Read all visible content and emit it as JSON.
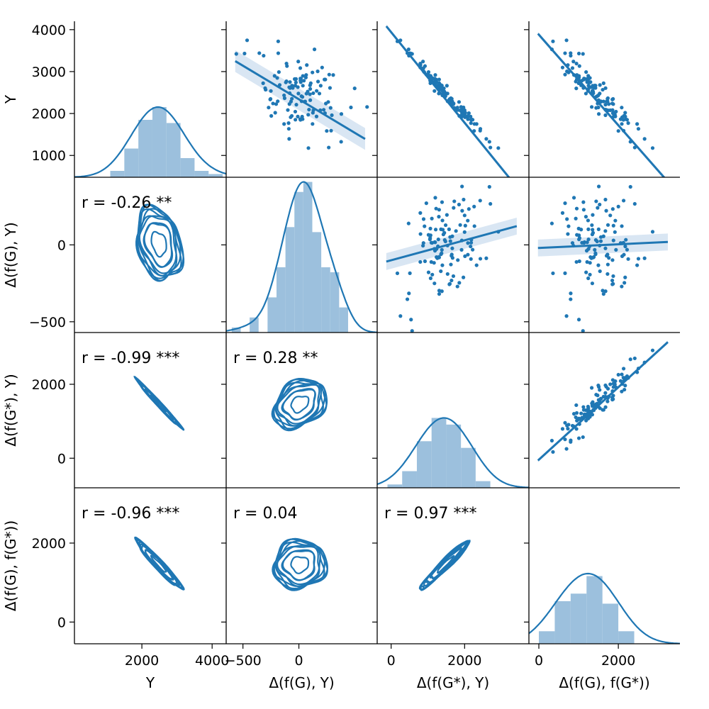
{
  "chart_data": {
    "type": "pairplot",
    "variables": [
      {
        "key": "Y",
        "label": "Y",
        "range": [
          80,
          4400
        ],
        "ticks": [
          2000,
          4000
        ]
      },
      {
        "key": "d_fG_Y",
        "label": "Δ(f(G), Y)",
        "range": [
          -650,
          700
        ],
        "ticks": [
          -500,
          0
        ]
      },
      {
        "key": "d_fGs_Y",
        "label": "Δ(f(G*), Y)",
        "range": [
          -380,
          3750
        ],
        "ticks": [
          0,
          2000
        ]
      },
      {
        "key": "d_fG_fGs",
        "label": "Δ(f(G), f(G*))",
        "range": [
          -250,
          3550
        ],
        "ticks": [
          0,
          2000
        ]
      }
    ],
    "row_ranges": [
      {
        "range": [
          480,
          4200
        ],
        "ticks": [
          1000,
          2000,
          3000,
          4000
        ]
      },
      {
        "range": [
          -570,
          440
        ],
        "ticks": [
          -500,
          0
        ]
      },
      {
        "range": [
          -800,
          3400
        ],
        "ticks": [
          0,
          2000
        ]
      },
      {
        "range": [
          -550,
          3400
        ],
        "ticks": [
          0,
          2000
        ]
      }
    ],
    "tick_labels": {
      "y_rows": [
        [
          "1000",
          "2000",
          "3000",
          "4000"
        ],
        [
          "−500",
          "0"
        ],
        [
          "0",
          "2000"
        ],
        [
          "0",
          "2000"
        ]
      ],
      "x_cols": [
        [
          "2000",
          "4000"
        ],
        [
          "−500",
          "0"
        ],
        [
          "0",
          "2000"
        ],
        [
          "0",
          "2000"
        ]
      ]
    },
    "axis_labels": {
      "x": [
        "Y",
        "Δ(f(G), Y)",
        "Δ(f(G*), Y)",
        "Δ(f(G), f(G*))"
      ],
      "y": [
        "Y",
        "Δ(f(G), Y)",
        "Δ(f(G*), Y)",
        "Δ(f(G), f(G*))"
      ]
    },
    "correlations": [
      {
        "row": 1,
        "col": 0,
        "text": "r = -0.26 **",
        "r": -0.26
      },
      {
        "row": 2,
        "col": 0,
        "text": "r = -0.99 ***",
        "r": -0.99
      },
      {
        "row": 2,
        "col": 1,
        "text": "r = 0.28 **",
        "r": 0.28
      },
      {
        "row": 3,
        "col": 0,
        "text": "r = -0.96 ***",
        "r": -0.96
      },
      {
        "row": 3,
        "col": 1,
        "text": "r = 0.04",
        "r": 0.04
      },
      {
        "row": 3,
        "col": 2,
        "text": "r = 0.97 ***",
        "r": 0.97
      }
    ],
    "histograms": [
      {
        "var": 0,
        "edges": [
          1100,
          1500,
          1900,
          2300,
          2700,
          3100,
          3500,
          3900,
          4300
        ],
        "counts": [
          2,
          9,
          18,
          22,
          17,
          6,
          2,
          1
        ],
        "kde_peak": 22
      },
      {
        "var": 1,
        "edges": [
          -600,
          -520,
          -440,
          -360,
          -280,
          -200,
          -120,
          -40,
          40,
          120,
          200,
          280,
          360,
          440,
          520
        ],
        "counts": [
          1,
          0,
          3,
          0,
          7,
          13,
          21,
          28,
          30,
          20,
          13,
          12,
          5,
          0
        ],
        "kde_peak": 30
      },
      {
        "var": 2,
        "edges": [
          -100,
          300,
          700,
          1100,
          1500,
          1900,
          2300,
          2700
        ],
        "counts": [
          1,
          5,
          14,
          21,
          19,
          12,
          2
        ],
        "kde_peak": 21
      },
      {
        "var": 3,
        "edges": [
          0,
          400,
          800,
          1200,
          1600,
          2000,
          2400
        ],
        "counts": [
          5,
          17,
          20,
          27,
          16,
          5
        ],
        "kde_peak": 28
      }
    ],
    "regressions": [
      {
        "row": 0,
        "col": 1,
        "slope": -1.6,
        "intercept": 2340
      },
      {
        "row": 0,
        "col": 2,
        "slope": -1.08,
        "intercept": 3940
      },
      {
        "row": 0,
        "col": 3,
        "slope": -1.08,
        "intercept": 3880
      },
      {
        "row": 1,
        "col": 2,
        "slope": 0.065,
        "intercept": -100
      },
      {
        "row": 1,
        "col": 3,
        "slope": 0.012,
        "intercept": -20
      },
      {
        "row": 2,
        "col": 3,
        "slope": 0.98,
        "intercept": -40
      }
    ],
    "colors": {
      "line": "#1f77b4",
      "fill": "#9cc0dd",
      "band": "#c9dcee"
    }
  }
}
